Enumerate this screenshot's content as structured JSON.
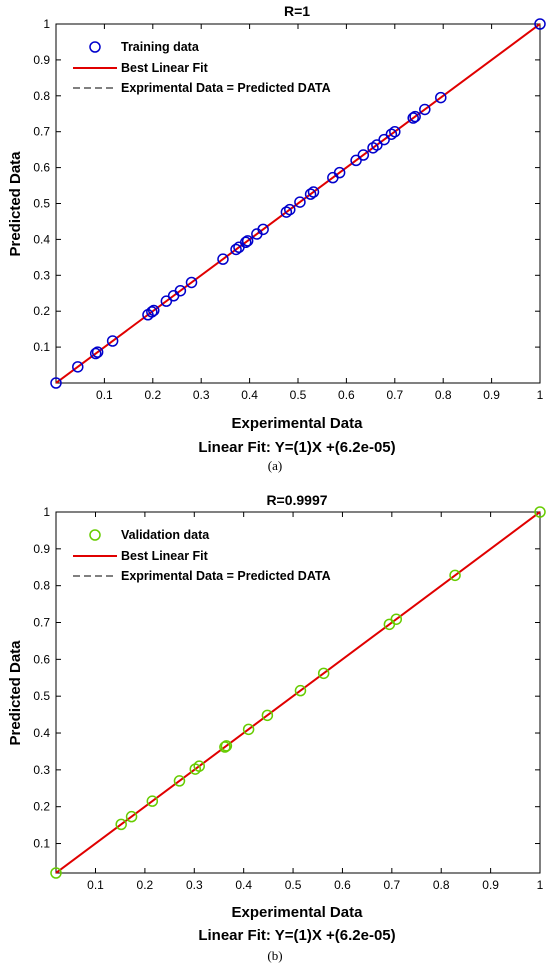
{
  "chart_data": [
    {
      "type": "scatter",
      "caption": "(a)",
      "title": "R=1",
      "xlabel": "Experimental Data",
      "ylabel": "Predicted Data",
      "subtitle": "Linear Fit: Y=(1)X +(6.2e-05)",
      "xlim": [
        0,
        1
      ],
      "ylim": [
        0,
        1
      ],
      "xticks": [
        "0.1",
        "0.2",
        "0.3",
        "0.4",
        "0.5",
        "0.6",
        "0.7",
        "0.8",
        "0.9",
        "1"
      ],
      "yticks": [
        "0.1",
        "0.2",
        "0.3",
        "0.4",
        "0.5",
        "0.6",
        "0.7",
        "0.8",
        "0.9",
        "1"
      ],
      "grid": false,
      "legend_position": "top-left",
      "colors": {
        "points": "#0000cc",
        "fit": "#e00000",
        "identity": "#000000"
      },
      "legend": [
        "Training data",
        "Best Linear Fit",
        "Exprimental Data = Predicted DATA"
      ],
      "fit": {
        "slope": 1,
        "intercept": 6.2e-05
      },
      "series": [
        {
          "name": "Training data",
          "x": [
            0.0,
            0.045,
            0.082,
            0.086,
            0.117,
            0.19,
            0.198,
            0.202,
            0.228,
            0.243,
            0.257,
            0.28,
            0.345,
            0.372,
            0.378,
            0.392,
            0.396,
            0.415,
            0.428,
            0.476,
            0.483,
            0.504,
            0.526,
            0.532,
            0.572,
            0.586,
            0.62,
            0.635,
            0.655,
            0.663,
            0.678,
            0.693,
            0.7,
            0.738,
            0.742,
            0.762,
            0.795,
            1.0
          ],
          "y": [
            0.0,
            0.045,
            0.082,
            0.086,
            0.117,
            0.19,
            0.198,
            0.202,
            0.228,
            0.243,
            0.257,
            0.28,
            0.345,
            0.372,
            0.378,
            0.392,
            0.396,
            0.415,
            0.428,
            0.476,
            0.483,
            0.504,
            0.526,
            0.532,
            0.572,
            0.586,
            0.62,
            0.635,
            0.655,
            0.663,
            0.678,
            0.693,
            0.7,
            0.738,
            0.742,
            0.762,
            0.795,
            1.0
          ]
        }
      ]
    },
    {
      "type": "scatter",
      "caption": "(b)",
      "title": "R=0.9997",
      "xlabel": "Experimental Data",
      "ylabel": "Predicted Data",
      "subtitle": "Linear Fit: Y=(1)X +(6.2e-05)",
      "xlim": [
        0.02,
        1
      ],
      "ylim": [
        0.02,
        1
      ],
      "xticks": [
        "0.1",
        "0.2",
        "0.3",
        "0.4",
        "0.5",
        "0.6",
        "0.7",
        "0.8",
        "0.9",
        "1"
      ],
      "yticks": [
        "0.1",
        "0.2",
        "0.3",
        "0.4",
        "0.5",
        "0.6",
        "0.7",
        "0.8",
        "0.9",
        "1"
      ],
      "grid": false,
      "legend_position": "top-left",
      "colors": {
        "points": "#66cc00",
        "fit": "#e00000",
        "identity": "#000000"
      },
      "legend": [
        "Validation data",
        "Best Linear Fit",
        "Exprimental Data = Predicted DATA"
      ],
      "fit": {
        "slope": 1,
        "intercept": 6.2e-05
      },
      "series": [
        {
          "name": "Validation data",
          "x": [
            0.02,
            0.152,
            0.173,
            0.215,
            0.27,
            0.302,
            0.31,
            0.362,
            0.365,
            0.41,
            0.448,
            0.515,
            0.562,
            0.695,
            0.709,
            0.828,
            1.0
          ],
          "y": [
            0.02,
            0.152,
            0.173,
            0.215,
            0.27,
            0.302,
            0.31,
            0.362,
            0.365,
            0.41,
            0.448,
            0.515,
            0.562,
            0.695,
            0.709,
            0.828,
            1.0
          ]
        }
      ]
    }
  ]
}
